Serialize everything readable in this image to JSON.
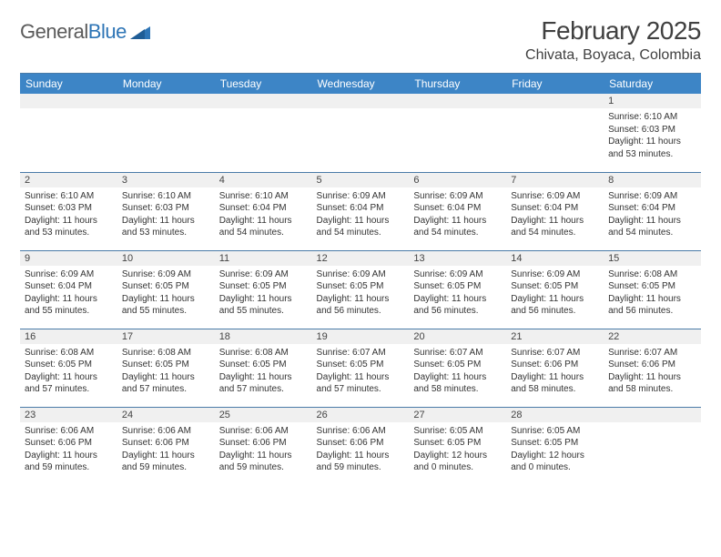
{
  "logo": {
    "word1": "General",
    "word2": "Blue",
    "text_color": "#5a5a5a",
    "accent_color": "#2e75b6"
  },
  "title": "February 2025",
  "location": "Chivata, Boyaca, Colombia",
  "colors": {
    "header_bg": "#3d85c6",
    "header_text": "#ffffff",
    "row_border": "#4a7ba8",
    "daynum_bg": "#f0f0f0",
    "body_text": "#333333"
  },
  "day_names": [
    "Sunday",
    "Monday",
    "Tuesday",
    "Wednesday",
    "Thursday",
    "Friday",
    "Saturday"
  ],
  "weeks": [
    [
      {
        "n": "",
        "sr": "",
        "ss": "",
        "dl": ""
      },
      {
        "n": "",
        "sr": "",
        "ss": "",
        "dl": ""
      },
      {
        "n": "",
        "sr": "",
        "ss": "",
        "dl": ""
      },
      {
        "n": "",
        "sr": "",
        "ss": "",
        "dl": ""
      },
      {
        "n": "",
        "sr": "",
        "ss": "",
        "dl": ""
      },
      {
        "n": "",
        "sr": "",
        "ss": "",
        "dl": ""
      },
      {
        "n": "1",
        "sr": "Sunrise: 6:10 AM",
        "ss": "Sunset: 6:03 PM",
        "dl": "Daylight: 11 hours and 53 minutes."
      }
    ],
    [
      {
        "n": "2",
        "sr": "Sunrise: 6:10 AM",
        "ss": "Sunset: 6:03 PM",
        "dl": "Daylight: 11 hours and 53 minutes."
      },
      {
        "n": "3",
        "sr": "Sunrise: 6:10 AM",
        "ss": "Sunset: 6:03 PM",
        "dl": "Daylight: 11 hours and 53 minutes."
      },
      {
        "n": "4",
        "sr": "Sunrise: 6:10 AM",
        "ss": "Sunset: 6:04 PM",
        "dl": "Daylight: 11 hours and 54 minutes."
      },
      {
        "n": "5",
        "sr": "Sunrise: 6:09 AM",
        "ss": "Sunset: 6:04 PM",
        "dl": "Daylight: 11 hours and 54 minutes."
      },
      {
        "n": "6",
        "sr": "Sunrise: 6:09 AM",
        "ss": "Sunset: 6:04 PM",
        "dl": "Daylight: 11 hours and 54 minutes."
      },
      {
        "n": "7",
        "sr": "Sunrise: 6:09 AM",
        "ss": "Sunset: 6:04 PM",
        "dl": "Daylight: 11 hours and 54 minutes."
      },
      {
        "n": "8",
        "sr": "Sunrise: 6:09 AM",
        "ss": "Sunset: 6:04 PM",
        "dl": "Daylight: 11 hours and 54 minutes."
      }
    ],
    [
      {
        "n": "9",
        "sr": "Sunrise: 6:09 AM",
        "ss": "Sunset: 6:04 PM",
        "dl": "Daylight: 11 hours and 55 minutes."
      },
      {
        "n": "10",
        "sr": "Sunrise: 6:09 AM",
        "ss": "Sunset: 6:05 PM",
        "dl": "Daylight: 11 hours and 55 minutes."
      },
      {
        "n": "11",
        "sr": "Sunrise: 6:09 AM",
        "ss": "Sunset: 6:05 PM",
        "dl": "Daylight: 11 hours and 55 minutes."
      },
      {
        "n": "12",
        "sr": "Sunrise: 6:09 AM",
        "ss": "Sunset: 6:05 PM",
        "dl": "Daylight: 11 hours and 56 minutes."
      },
      {
        "n": "13",
        "sr": "Sunrise: 6:09 AM",
        "ss": "Sunset: 6:05 PM",
        "dl": "Daylight: 11 hours and 56 minutes."
      },
      {
        "n": "14",
        "sr": "Sunrise: 6:09 AM",
        "ss": "Sunset: 6:05 PM",
        "dl": "Daylight: 11 hours and 56 minutes."
      },
      {
        "n": "15",
        "sr": "Sunrise: 6:08 AM",
        "ss": "Sunset: 6:05 PM",
        "dl": "Daylight: 11 hours and 56 minutes."
      }
    ],
    [
      {
        "n": "16",
        "sr": "Sunrise: 6:08 AM",
        "ss": "Sunset: 6:05 PM",
        "dl": "Daylight: 11 hours and 57 minutes."
      },
      {
        "n": "17",
        "sr": "Sunrise: 6:08 AM",
        "ss": "Sunset: 6:05 PM",
        "dl": "Daylight: 11 hours and 57 minutes."
      },
      {
        "n": "18",
        "sr": "Sunrise: 6:08 AM",
        "ss": "Sunset: 6:05 PM",
        "dl": "Daylight: 11 hours and 57 minutes."
      },
      {
        "n": "19",
        "sr": "Sunrise: 6:07 AM",
        "ss": "Sunset: 6:05 PM",
        "dl": "Daylight: 11 hours and 57 minutes."
      },
      {
        "n": "20",
        "sr": "Sunrise: 6:07 AM",
        "ss": "Sunset: 6:05 PM",
        "dl": "Daylight: 11 hours and 58 minutes."
      },
      {
        "n": "21",
        "sr": "Sunrise: 6:07 AM",
        "ss": "Sunset: 6:06 PM",
        "dl": "Daylight: 11 hours and 58 minutes."
      },
      {
        "n": "22",
        "sr": "Sunrise: 6:07 AM",
        "ss": "Sunset: 6:06 PM",
        "dl": "Daylight: 11 hours and 58 minutes."
      }
    ],
    [
      {
        "n": "23",
        "sr": "Sunrise: 6:06 AM",
        "ss": "Sunset: 6:06 PM",
        "dl": "Daylight: 11 hours and 59 minutes."
      },
      {
        "n": "24",
        "sr": "Sunrise: 6:06 AM",
        "ss": "Sunset: 6:06 PM",
        "dl": "Daylight: 11 hours and 59 minutes."
      },
      {
        "n": "25",
        "sr": "Sunrise: 6:06 AM",
        "ss": "Sunset: 6:06 PM",
        "dl": "Daylight: 11 hours and 59 minutes."
      },
      {
        "n": "26",
        "sr": "Sunrise: 6:06 AM",
        "ss": "Sunset: 6:06 PM",
        "dl": "Daylight: 11 hours and 59 minutes."
      },
      {
        "n": "27",
        "sr": "Sunrise: 6:05 AM",
        "ss": "Sunset: 6:05 PM",
        "dl": "Daylight: 12 hours and 0 minutes."
      },
      {
        "n": "28",
        "sr": "Sunrise: 6:05 AM",
        "ss": "Sunset: 6:05 PM",
        "dl": "Daylight: 12 hours and 0 minutes."
      },
      {
        "n": "",
        "sr": "",
        "ss": "",
        "dl": ""
      }
    ]
  ]
}
